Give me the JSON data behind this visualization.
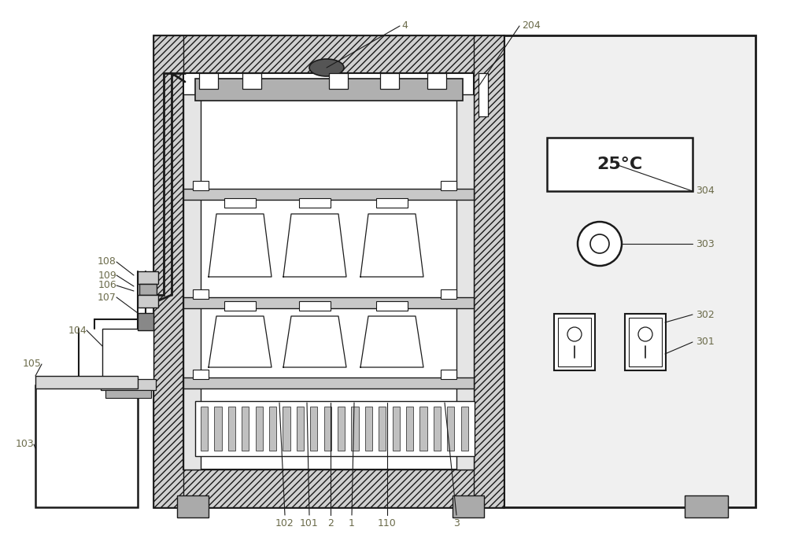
{
  "bg_color": "#ffffff",
  "line_color": "#1a1a1a",
  "label_color": "#6b6b4a",
  "lw_main": 1.8,
  "lw_inner": 1.2,
  "lw_thin": 0.8
}
